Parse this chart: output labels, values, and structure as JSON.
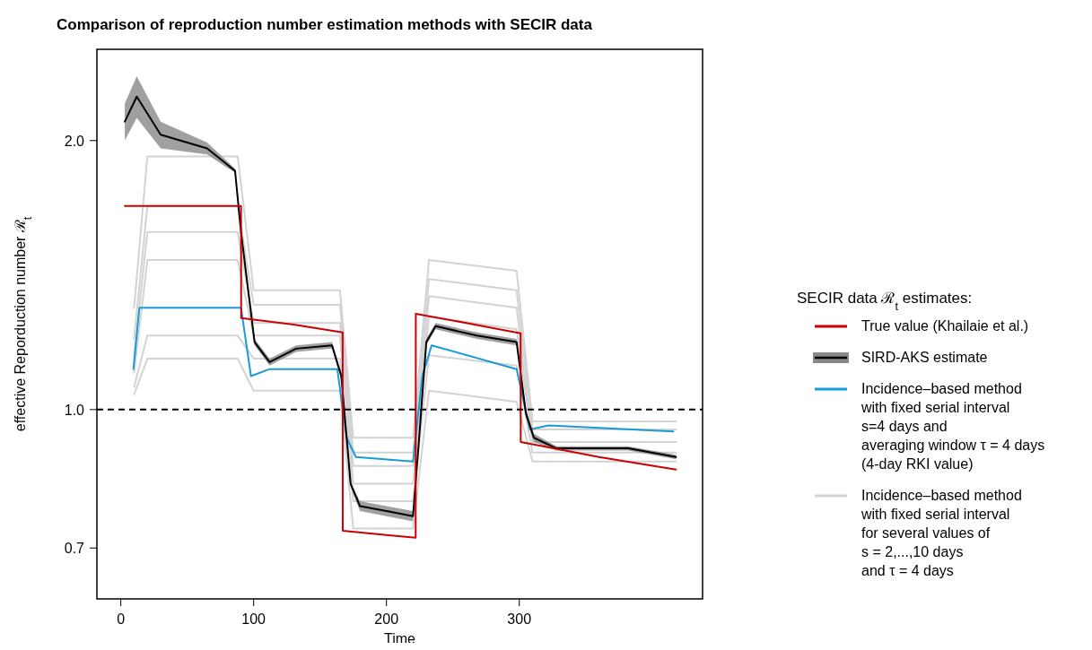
{
  "chart_data": {
    "type": "line",
    "title": "Comparison of reproduction number estimation methods with SECIR data",
    "xlabel": "Time",
    "ylabel": "effective Reporduction number  ℛ$_{t}$",
    "legend_title": "SECIR data ℛ$_{t}$ estimates:",
    "legend": "right",
    "log": "y",
    "xlim": [
      -18,
      438
    ],
    "ylim": [
      0.614,
      2.53
    ],
    "xticks": [
      0,
      100,
      200,
      300
    ],
    "yticks": [
      0.7,
      {
        "value": 1,
        "label": "1.0"
      },
      {
        "value": 2,
        "label": "2.0"
      }
    ],
    "ref_lines": [
      {
        "axis": "y",
        "value": 1,
        "color": "#000000",
        "line_style": "dashed"
      }
    ],
    "series": [
      {
        "name": "True value (Khailaie et al.)",
        "color": "#cc0000",
        "x": [
          3,
          90.5,
          90.6,
          130,
          167,
          167.1,
          200,
          222,
          222.1,
          260,
          301,
          301.1,
          360,
          418
        ],
        "values": [
          1.69,
          1.69,
          1.266,
          1.245,
          1.22,
          0.732,
          0.724,
          0.719,
          1.28,
          1.25,
          1.217,
          0.92,
          0.885,
          0.857
        ]
      },
      {
        "name": "SIRD-AKS estimate",
        "color": "#000000",
        "x": [
          3,
          12,
          30,
          65,
          86,
          90.5,
          100.7,
          112,
          132,
          159,
          166,
          173,
          180,
          200,
          220,
          224,
          230,
          237,
          268,
          298,
          305,
          311,
          328,
          382,
          418
        ],
        "values": [
          2.1,
          2.24,
          2.03,
          1.96,
          1.85,
          1.58,
          1.19,
          1.13,
          1.17,
          1.18,
          1.09,
          0.826,
          0.78,
          0.77,
          0.76,
          0.905,
          1.19,
          1.24,
          1.21,
          1.19,
          0.99,
          0.93,
          0.905,
          0.905,
          0.885
        ],
        "lower": [
          2.0,
          2.12,
          1.96,
          1.93,
          1.84,
          1.57,
          1.18,
          1.12,
          1.16,
          1.17,
          1.08,
          0.82,
          0.77,
          0.76,
          0.75,
          0.9,
          1.18,
          1.23,
          1.2,
          1.18,
          0.98,
          0.92,
          0.9,
          0.9,
          0.88
        ],
        "upper": [
          2.2,
          2.36,
          2.1,
          1.99,
          1.86,
          1.59,
          1.2,
          1.14,
          1.18,
          1.19,
          1.1,
          0.83,
          0.79,
          0.78,
          0.77,
          0.91,
          1.2,
          1.25,
          1.22,
          1.2,
          1.0,
          0.94,
          0.91,
          0.91,
          0.89
        ]
      },
      {
        "name": "Incidence–based method\nwith fixed serial interval\ns=4 days and\naveraging window τ = 4 days\n(4-day RKI value)",
        "color": "#1a9ad6",
        "x": [
          9.5,
          14,
          90.5,
          98,
          112,
          163,
          170,
          177,
          220,
          227,
          234,
          298,
          308,
          322,
          416
        ],
        "values": [
          1.11,
          1.3,
          1.3,
          1.09,
          1.11,
          1.11,
          0.93,
          0.885,
          0.875,
          1.09,
          1.18,
          1.11,
          0.95,
          0.96,
          0.945
        ]
      },
      {
        "name": "Incidence–based method\nwith fixed serial interval\nfor several values of\ns = 2,...,10 days\nand τ = 4 days",
        "color": "#d3d3d3",
        "x": [
          10,
          20,
          88,
          100,
          165,
          175,
          220,
          232,
          298,
          310,
          418
        ],
        "values": [
          1.3,
          1.92,
          1.92,
          1.36,
          1.36,
          0.93,
          0.93,
          1.47,
          1.43,
          0.97,
          0.97
        ]
      },
      {
        "color": "#d3d3d3",
        "x": [
          10,
          20,
          88,
          100,
          165,
          175,
          220,
          232,
          298,
          310,
          418
        ],
        "values": [
          1.2,
          1.69,
          1.69,
          1.31,
          1.31,
          0.895,
          0.895,
          1.4,
          1.36,
          0.95,
          0.95
        ]
      },
      {
        "color": "#d3d3d3",
        "x": [
          10,
          20,
          88,
          100,
          165,
          175,
          220,
          232,
          298,
          310,
          418
        ],
        "values": [
          1.15,
          1.58,
          1.58,
          1.25,
          1.25,
          0.865,
          0.865,
          1.34,
          1.3,
          0.92,
          0.92
        ]
      },
      {
        "color": "#d3d3d3",
        "x": [
          10,
          20,
          88,
          100,
          165,
          175,
          220,
          232,
          298,
          310,
          418
        ],
        "values": [
          1.1,
          1.47,
          1.47,
          1.21,
          1.21,
          0.826,
          0.826,
          1.27,
          1.23,
          0.92,
          0.92
        ]
      },
      {
        "color": "#d3d3d3",
        "x": [
          10,
          20,
          88,
          100,
          165,
          175,
          220,
          232,
          298,
          310,
          418
        ],
        "values": [
          1.06,
          1.21,
          1.21,
          1.14,
          1.14,
          0.79,
          0.79,
          1.15,
          1.12,
          0.895,
          0.895
        ]
      },
      {
        "color": "#d3d3d3",
        "x": [
          10,
          20,
          88,
          100,
          165,
          175,
          220,
          232,
          298,
          310,
          418
        ],
        "values": [
          1.04,
          1.14,
          1.14,
          1.05,
          1.05,
          0.736,
          0.736,
          1.05,
          1.02,
          0.875,
          0.875
        ]
      }
    ]
  }
}
